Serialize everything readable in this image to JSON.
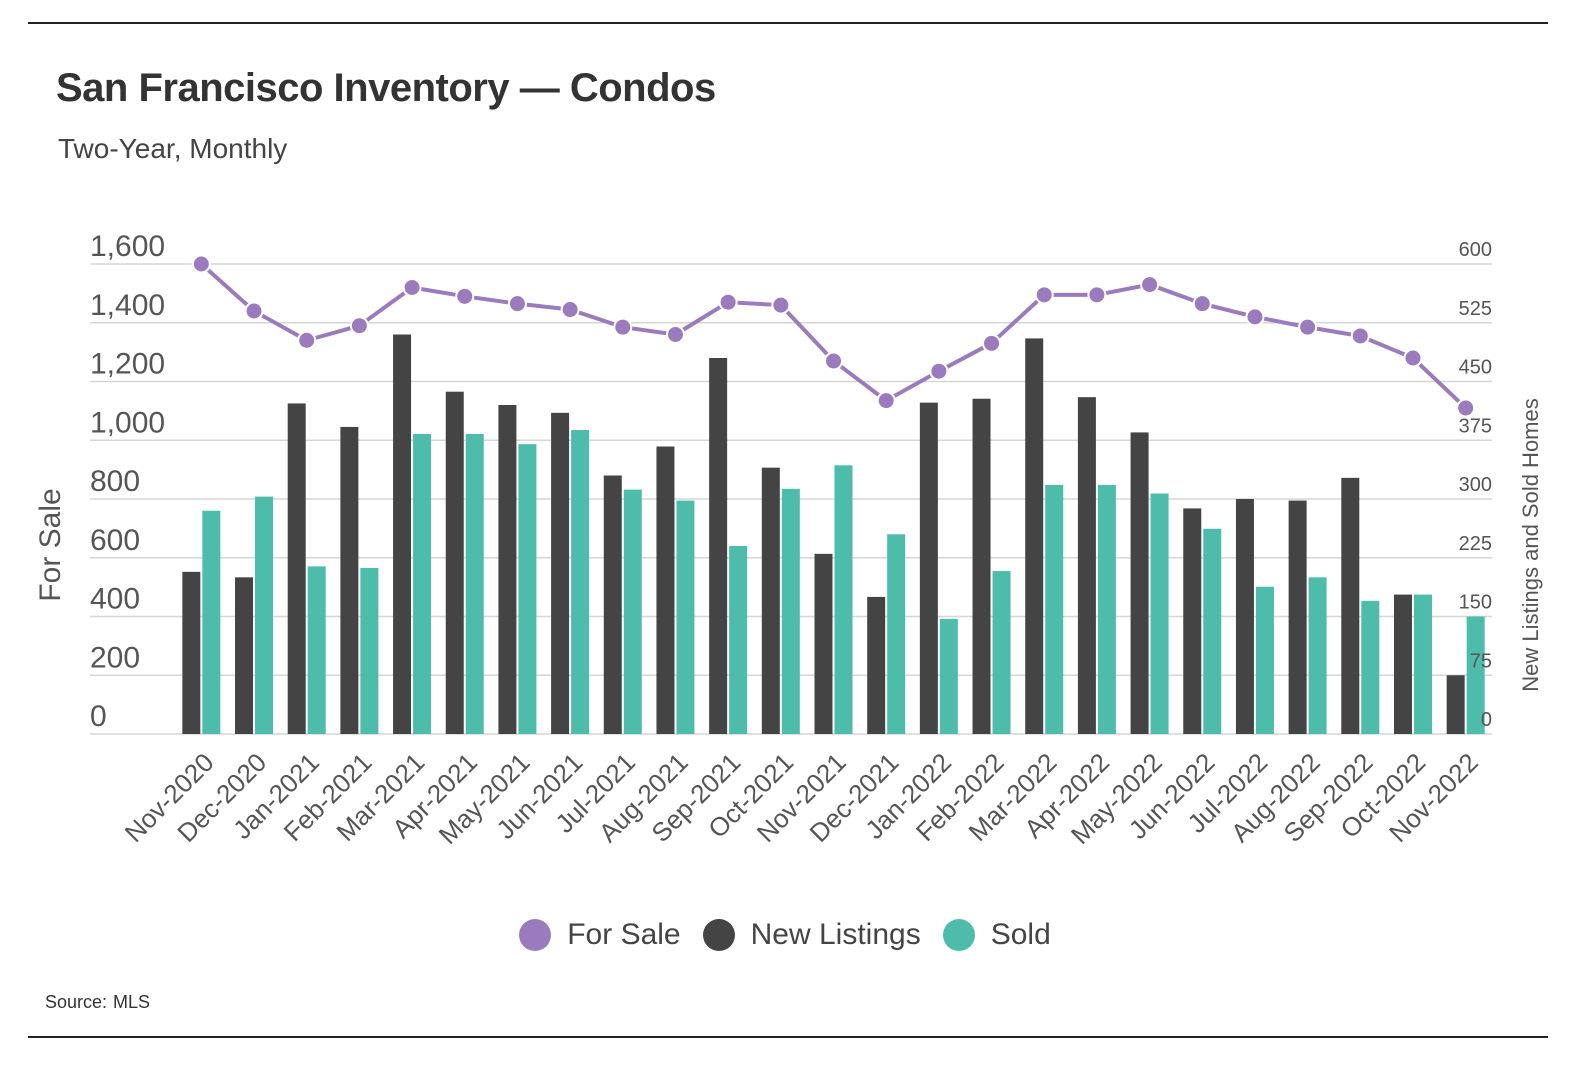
{
  "title": "San Francisco Inventory — Condos",
  "subtitle": "Two-Year, Monthly",
  "source_label": "Source:",
  "source_value": "MLS",
  "colors": {
    "for_sale": "#9b7bbd",
    "new_listings": "#444444",
    "sold": "#4dbcaa",
    "grid": "#d6d6d6"
  },
  "chart_data": {
    "type": "bar",
    "title": "San Francisco Inventory — Condos",
    "subtitle": "Two-Year, Monthly",
    "ylabel": "For Sale",
    "ylabel_right": "New Listings and Sold Homes",
    "ylim": [
      0,
      1600
    ],
    "ylim_right": [
      0,
      600
    ],
    "yticks_left": [
      "0",
      "200",
      "400",
      "600",
      "800",
      "1,000",
      "1,200",
      "1,400",
      "1,600"
    ],
    "yticks_right": [
      "0",
      "75",
      "150",
      "225",
      "300",
      "375",
      "450",
      "525",
      "600"
    ],
    "categories": [
      "Nov-2020",
      "Dec-2020",
      "Jan-2021",
      "Feb-2021",
      "Mar-2021",
      "Apr-2021",
      "May-2021",
      "Jun-2021",
      "Jul-2021",
      "Aug-2021",
      "Sep-2021",
      "Oct-2021",
      "Nov-2021",
      "Dec-2021",
      "Jan-2022",
      "Feb-2022",
      "Mar-2022",
      "Apr-2022",
      "May-2022",
      "Jun-2022",
      "Jul-2022",
      "Aug-2022",
      "Sep-2022",
      "Oct-2022",
      "Nov-2022"
    ],
    "series": [
      {
        "name": "For Sale",
        "type": "line",
        "axis": "left",
        "values": [
          1600,
          1440,
          1340,
          1390,
          1520,
          1490,
          1465,
          1445,
          1385,
          1360,
          1470,
          1460,
          1270,
          1135,
          1235,
          1330,
          1495,
          1495,
          1530,
          1465,
          1420,
          1385,
          1355,
          1280,
          1110
        ]
      },
      {
        "name": "New Listings",
        "type": "bar",
        "axis": "right",
        "values": [
          207,
          200,
          422,
          392,
          510,
          437,
          420,
          410,
          330,
          367,
          480,
          340,
          230,
          175,
          423,
          428,
          505,
          430,
          385,
          288,
          300,
          298,
          327,
          178,
          75
        ]
      },
      {
        "name": "Sold",
        "type": "bar",
        "axis": "right",
        "values": [
          285,
          303,
          214,
          212,
          383,
          383,
          370,
          388,
          312,
          298,
          240,
          313,
          343,
          255,
          147,
          208,
          318,
          318,
          307,
          262,
          188,
          200,
          170,
          178,
          150
        ]
      }
    ],
    "legend": [
      "For Sale",
      "New Listings",
      "Sold"
    ],
    "legend_position": "bottom-center",
    "grid": true
  }
}
